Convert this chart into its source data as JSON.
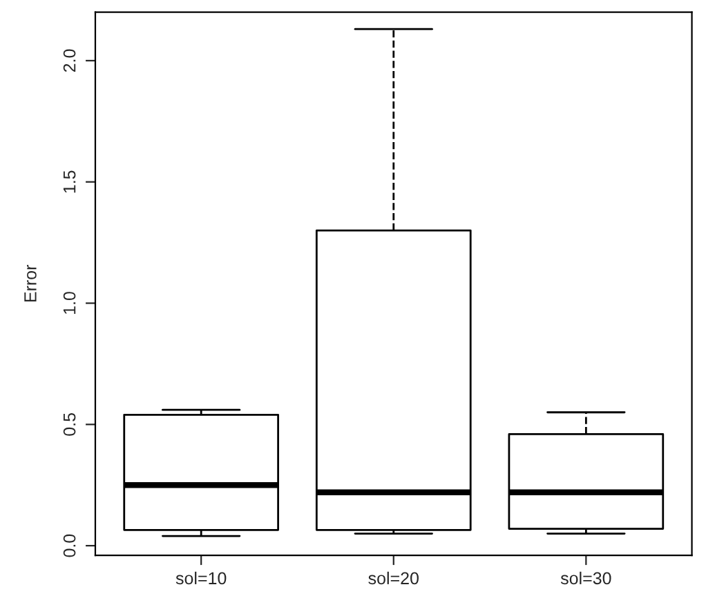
{
  "chart_data": {
    "type": "box",
    "ylabel": "Error",
    "categories": [
      "sol=10",
      "sol=20",
      "sol=30"
    ],
    "boxes": [
      {
        "low": 0.04,
        "q1": 0.065,
        "median": 0.25,
        "q3": 0.54,
        "high": 0.56
      },
      {
        "low": 0.05,
        "q1": 0.065,
        "median": 0.22,
        "q3": 1.3,
        "high": 2.13
      },
      {
        "low": 0.05,
        "q1": 0.07,
        "median": 0.22,
        "q3": 0.46,
        "high": 0.55
      }
    ],
    "ylim": [
      -0.04,
      2.2
    ],
    "yticks": [
      {
        "value": 0,
        "label": "0.0"
      },
      0.5,
      {
        "value": 1,
        "label": "1.0"
      },
      1.5,
      {
        "value": 2,
        "label": "2.0"
      }
    ],
    "grid": false,
    "line_style": "dashed"
  }
}
